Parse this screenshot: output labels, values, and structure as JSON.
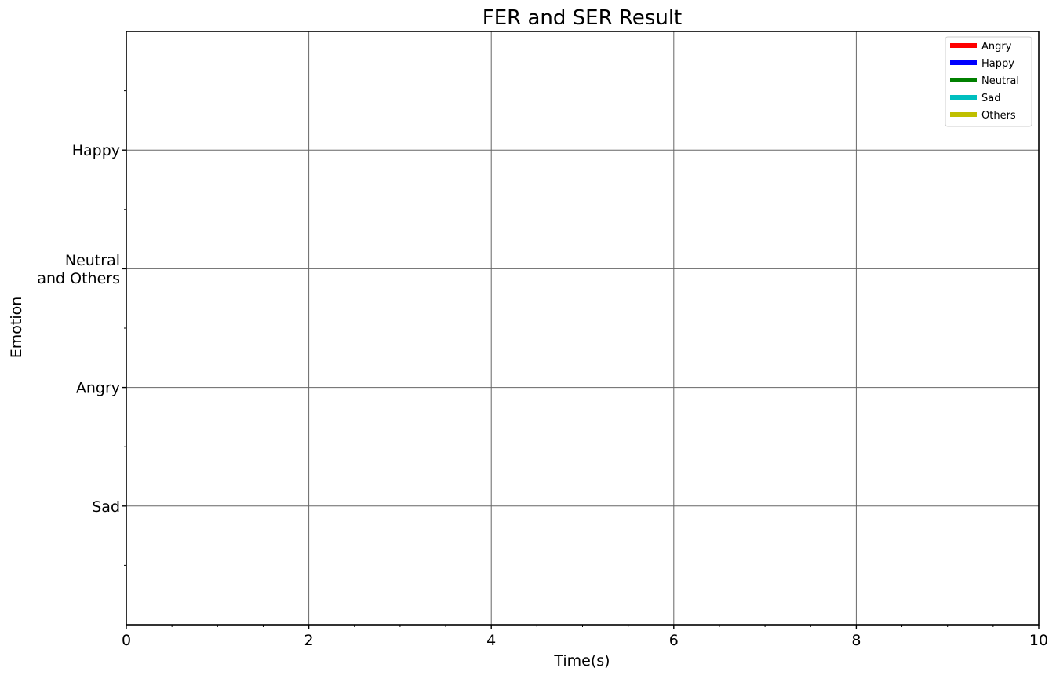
{
  "chart_data": {
    "type": "line",
    "title": "FER and SER Result",
    "xlabel": "Time(s)",
    "ylabel": "Emotion",
    "xlim": [
      0,
      10
    ],
    "ylim": [
      -1,
      4
    ],
    "x_ticks": [
      {
        "value": 0,
        "label": "0"
      },
      {
        "value": 2,
        "label": "2"
      },
      {
        "value": 4,
        "label": "4"
      },
      {
        "value": 6,
        "label": "6"
      },
      {
        "value": 8,
        "label": "8"
      },
      {
        "value": 10,
        "label": "10"
      }
    ],
    "x_minor_step": 0.5,
    "y_ticks": [
      {
        "value": 0,
        "label": "Sad"
      },
      {
        "value": 1,
        "label": "Angry"
      },
      {
        "value": 2,
        "label": "Neutral\nand Others"
      },
      {
        "value": 3,
        "label": "Happy"
      }
    ],
    "y_minor_step": 0.5,
    "grid": true,
    "grid_color": "#666666",
    "legend_placement": "top-right",
    "series": [
      {
        "name": "Angry",
        "color": "#ff0000",
        "x": [],
        "y": []
      },
      {
        "name": "Happy",
        "color": "#0000ff",
        "x": [],
        "y": []
      },
      {
        "name": "Neutral",
        "color": "#008000",
        "x": [],
        "y": []
      },
      {
        "name": "Sad",
        "color": "#00bfbf",
        "x": [],
        "y": []
      },
      {
        "name": "Others",
        "color": "#bfbf00",
        "x": [],
        "y": []
      }
    ]
  }
}
